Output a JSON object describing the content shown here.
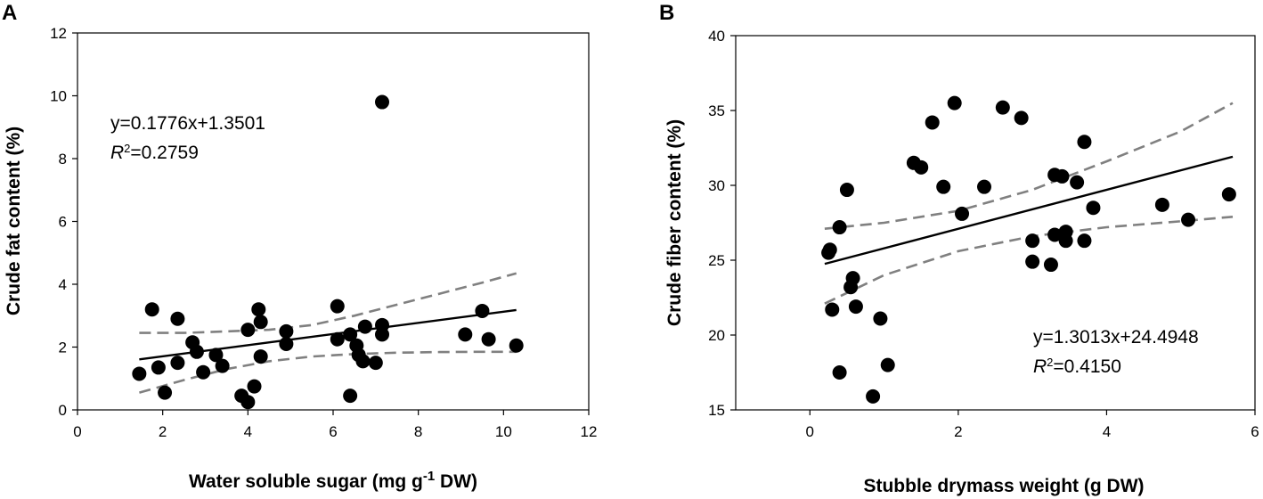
{
  "chart_data": [
    {
      "type": "scatter",
      "panel": "A",
      "xlabel": "Water soluble sugar (mg g",
      "xlabel_sup": "-1",
      "xlabel_end": " DW)",
      "ylabel": "Crude fat content (%)",
      "xlim": [
        0,
        12
      ],
      "ylim": [
        0,
        12
      ],
      "xticks": [
        0,
        2,
        4,
        6,
        8,
        10,
        12
      ],
      "yticks": [
        0,
        2,
        4,
        6,
        8,
        10,
        12
      ],
      "xtick_labels": [
        "0",
        "2",
        "4",
        "6",
        "8",
        "10",
        "12"
      ],
      "ytick_labels": [
        "0",
        "2",
        "4",
        "6",
        "8",
        "10",
        "12"
      ],
      "equation": "y=0.1776x+1.3501",
      "r2_symbol": "R",
      "r2_sup": "2",
      "r2_value": "=0.2759",
      "fit": {
        "slope": 0.1776,
        "intercept": 1.3501,
        "x_range": [
          1.45,
          10.3
        ]
      },
      "ci_upper": [
        [
          1.45,
          2.45
        ],
        [
          2.5,
          2.45
        ],
        [
          3.5,
          2.5
        ],
        [
          4.5,
          2.55
        ],
        [
          5.5,
          2.7
        ],
        [
          6.5,
          3.0
        ],
        [
          7.5,
          3.35
        ],
        [
          8.5,
          3.7
        ],
        [
          9.5,
          4.05
        ],
        [
          10.3,
          4.35
        ]
      ],
      "ci_lower": [
        [
          1.45,
          0.55
        ],
        [
          2.5,
          0.95
        ],
        [
          3.5,
          1.3
        ],
        [
          4.5,
          1.55
        ],
        [
          5.5,
          1.7
        ],
        [
          6.5,
          1.78
        ],
        [
          7.5,
          1.82
        ],
        [
          8.5,
          1.84
        ],
        [
          9.5,
          1.85
        ],
        [
          10.3,
          1.85
        ]
      ],
      "points": [
        [
          1.45,
          1.15
        ],
        [
          1.75,
          3.2
        ],
        [
          1.9,
          1.35
        ],
        [
          2.05,
          0.55
        ],
        [
          2.35,
          2.9
        ],
        [
          2.35,
          1.5
        ],
        [
          2.7,
          2.15
        ],
        [
          2.8,
          1.85
        ],
        [
          2.95,
          1.2
        ],
        [
          3.25,
          1.75
        ],
        [
          3.4,
          1.4
        ],
        [
          3.85,
          0.45
        ],
        [
          4.0,
          0.25
        ],
        [
          4.0,
          2.55
        ],
        [
          4.15,
          0.75
        ],
        [
          4.25,
          3.2
        ],
        [
          4.3,
          2.8
        ],
        [
          4.3,
          1.7
        ],
        [
          4.9,
          2.5
        ],
        [
          4.9,
          2.1
        ],
        [
          6.1,
          3.3
        ],
        [
          6.1,
          2.25
        ],
        [
          6.4,
          2.4
        ],
        [
          6.4,
          0.45
        ],
        [
          6.55,
          2.05
        ],
        [
          6.6,
          1.75
        ],
        [
          6.7,
          1.55
        ],
        [
          6.75,
          2.65
        ],
        [
          7.0,
          1.5
        ],
        [
          7.15,
          9.8
        ],
        [
          7.15,
          2.7
        ],
        [
          7.15,
          2.4
        ],
        [
          9.1,
          2.4
        ],
        [
          9.5,
          3.15
        ],
        [
          9.65,
          2.25
        ],
        [
          10.3,
          2.05
        ]
      ]
    },
    {
      "type": "scatter",
      "panel": "B",
      "xlabel": "Stubble drymass weight (g DW)",
      "ylabel": "Crude fiber content (%)",
      "xlim": [
        -1,
        6
      ],
      "ylim": [
        15,
        40
      ],
      "xticks": [
        0,
        2,
        4,
        6
      ],
      "yticks": [
        15,
        20,
        25,
        30,
        35,
        40
      ],
      "xtick_labels": [
        "0",
        "2",
        "4",
        "6"
      ],
      "ytick_labels": [
        "15",
        "20",
        "25",
        "30",
        "35",
        "40"
      ],
      "equation": "y=1.3013x+24.4948",
      "r2_symbol": "R",
      "r2_sup": "2",
      "r2_value": "=0.4150",
      "fit": {
        "slope": 1.3013,
        "intercept": 24.4948,
        "x_range": [
          0.2,
          5.7
        ]
      },
      "ci_upper": [
        [
          0.2,
          27.1
        ],
        [
          1.0,
          27.5
        ],
        [
          2.0,
          28.3
        ],
        [
          3.0,
          29.7
        ],
        [
          4.0,
          31.6
        ],
        [
          5.0,
          33.6
        ],
        [
          5.7,
          35.5
        ]
      ],
      "ci_lower": [
        [
          0.2,
          22.1
        ],
        [
          1.0,
          24.0
        ],
        [
          2.0,
          25.6
        ],
        [
          3.0,
          26.6
        ],
        [
          4.0,
          27.2
        ],
        [
          5.0,
          27.6
        ],
        [
          5.7,
          27.9
        ]
      ],
      "points": [
        [
          0.25,
          25.5
        ],
        [
          0.27,
          25.7
        ],
        [
          0.3,
          21.7
        ],
        [
          0.4,
          27.2
        ],
        [
          0.4,
          17.5
        ],
        [
          0.5,
          29.7
        ],
        [
          0.55,
          23.2
        ],
        [
          0.58,
          23.8
        ],
        [
          0.62,
          21.9
        ],
        [
          0.85,
          15.9
        ],
        [
          0.95,
          21.1
        ],
        [
          1.05,
          18.0
        ],
        [
          1.4,
          31.5
        ],
        [
          1.5,
          31.2
        ],
        [
          1.65,
          34.2
        ],
        [
          1.8,
          29.9
        ],
        [
          1.95,
          35.5
        ],
        [
          2.05,
          28.1
        ],
        [
          2.35,
          29.9
        ],
        [
          2.6,
          35.2
        ],
        [
          2.85,
          34.5
        ],
        [
          3.0,
          24.9
        ],
        [
          3.0,
          26.3
        ],
        [
          3.25,
          24.7
        ],
        [
          3.3,
          30.7
        ],
        [
          3.3,
          26.7
        ],
        [
          3.4,
          30.6
        ],
        [
          3.45,
          26.3
        ],
        [
          3.45,
          26.9
        ],
        [
          3.6,
          30.2
        ],
        [
          3.7,
          32.9
        ],
        [
          3.7,
          26.3
        ],
        [
          3.82,
          28.5
        ],
        [
          4.75,
          28.7
        ],
        [
          5.1,
          27.7
        ],
        [
          5.65,
          29.4
        ]
      ]
    }
  ]
}
